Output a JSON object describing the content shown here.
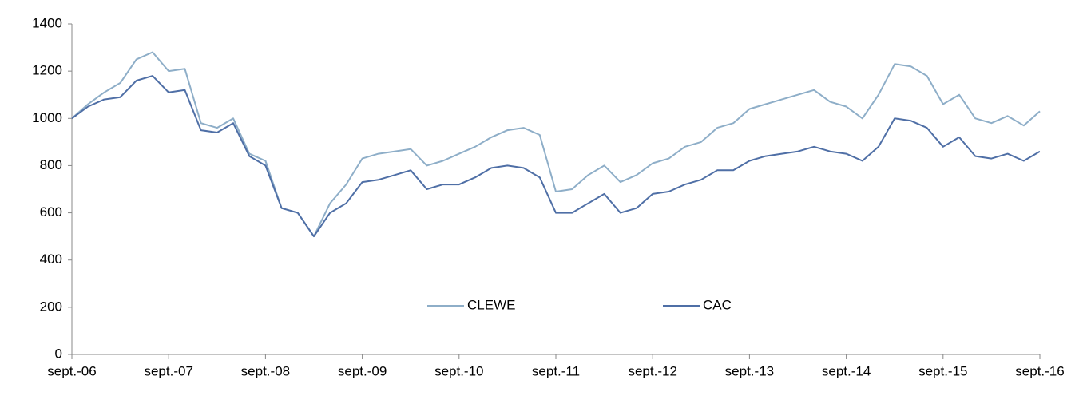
{
  "chart_data": {
    "type": "line",
    "x": [
      "2006-09",
      "2006-11",
      "2007-01",
      "2007-03",
      "2007-05",
      "2007-07",
      "2007-09",
      "2007-11",
      "2008-01",
      "2008-03",
      "2008-05",
      "2008-07",
      "2008-09",
      "2008-11",
      "2009-01",
      "2009-03",
      "2009-05",
      "2009-07",
      "2009-09",
      "2009-11",
      "2010-01",
      "2010-03",
      "2010-05",
      "2010-07",
      "2010-09",
      "2010-11",
      "2011-01",
      "2011-03",
      "2011-05",
      "2011-07",
      "2011-09",
      "2011-11",
      "2012-01",
      "2012-03",
      "2012-05",
      "2012-07",
      "2012-09",
      "2012-11",
      "2013-01",
      "2013-03",
      "2013-05",
      "2013-07",
      "2013-09",
      "2013-11",
      "2014-01",
      "2014-03",
      "2014-05",
      "2014-07",
      "2014-09",
      "2014-11",
      "2015-01",
      "2015-03",
      "2015-05",
      "2015-07",
      "2015-09",
      "2015-11",
      "2016-01",
      "2016-03",
      "2016-05",
      "2016-07",
      "2016-09"
    ],
    "series": [
      {
        "name": "CLEWE",
        "color": "#8eaec8",
        "values": [
          1000,
          1060,
          1110,
          1150,
          1250,
          1280,
          1200,
          1210,
          980,
          960,
          1000,
          850,
          820,
          620,
          600,
          500,
          640,
          720,
          830,
          850,
          860,
          870,
          800,
          820,
          850,
          880,
          920,
          950,
          960,
          930,
          690,
          700,
          760,
          800,
          730,
          760,
          810,
          830,
          880,
          900,
          960,
          980,
          1040,
          1060,
          1080,
          1100,
          1120,
          1070,
          1050,
          1000,
          1100,
          1230,
          1220,
          1180,
          1060,
          1100,
          1000,
          980,
          1010,
          970,
          1030
        ]
      },
      {
        "name": "CAC",
        "color": "#4f6fa6",
        "values": [
          1000,
          1050,
          1080,
          1090,
          1160,
          1180,
          1110,
          1120,
          950,
          940,
          980,
          840,
          800,
          620,
          600,
          500,
          600,
          640,
          730,
          740,
          760,
          780,
          700,
          720,
          720,
          750,
          790,
          800,
          790,
          750,
          600,
          600,
          640,
          680,
          600,
          620,
          680,
          690,
          720,
          740,
          780,
          780,
          820,
          840,
          850,
          860,
          880,
          860,
          850,
          820,
          880,
          1000,
          990,
          960,
          880,
          920,
          840,
          830,
          850,
          820,
          860
        ]
      }
    ],
    "ylim": [
      0,
      1400
    ],
    "yticks": [
      0,
      200,
      400,
      600,
      800,
      1000,
      1200,
      1400
    ],
    "xlim": [
      "2006-09",
      "2016-09"
    ],
    "xticks": [
      {
        "value": "2006-09",
        "label": "sept.-06"
      },
      {
        "value": "2007-09",
        "label": "sept.-07"
      },
      {
        "value": "2008-09",
        "label": "sept.-08"
      },
      {
        "value": "2009-09",
        "label": "sept.-09"
      },
      {
        "value": "2010-09",
        "label": "sept.-10"
      },
      {
        "value": "2011-09",
        "label": "sept.-11"
      },
      {
        "value": "2012-09",
        "label": "sept.-12"
      },
      {
        "value": "2013-09",
        "label": "sept.-13"
      },
      {
        "value": "2014-09",
        "label": "sept.-14"
      },
      {
        "value": "2015-09",
        "label": "sept.-15"
      },
      {
        "value": "2016-09",
        "label": "sept.-16"
      }
    ],
    "grid": false
  }
}
